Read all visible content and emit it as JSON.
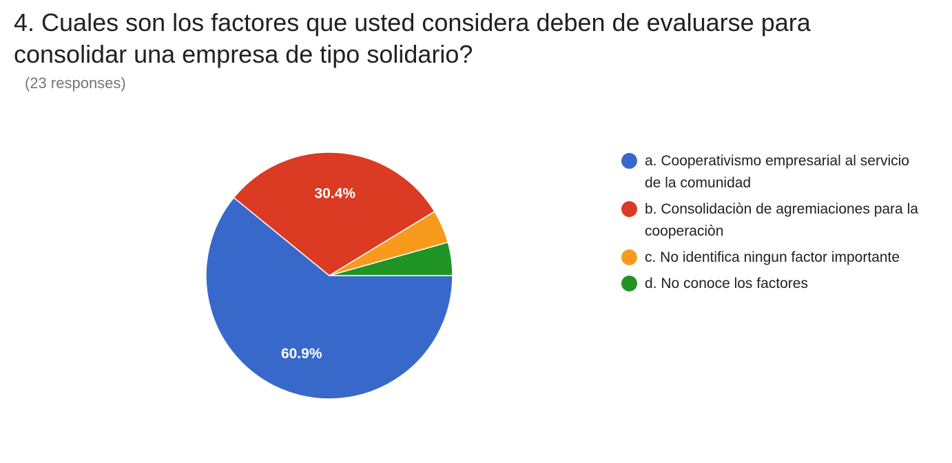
{
  "question": {
    "title": "4. Cuales son los factores que usted considera deben de evaluarse para consolidar una empresa de tipo solidario?",
    "responses": "(23 responses)"
  },
  "chart_data": {
    "type": "pie",
    "start": "right, clockwise",
    "legend_position": "right",
    "slices": [
      {
        "label": "a. Cooperativismo empresarial al servicio de la comunidad",
        "value": 60.9,
        "display": "60.9%",
        "color": "#3868CA"
      },
      {
        "label": "b. Consolidaciòn de agremiaciones para la cooperaciòn",
        "value": 30.4,
        "display": "30.4%",
        "color": "#DA3B22"
      },
      {
        "label": "c. No identifica ningun factor importante",
        "value": 4.35,
        "display": "",
        "color": "#F89A1C"
      },
      {
        "label": "d. No conoce los factores",
        "value": 4.35,
        "display": "",
        "color": "#1F9424"
      }
    ]
  }
}
